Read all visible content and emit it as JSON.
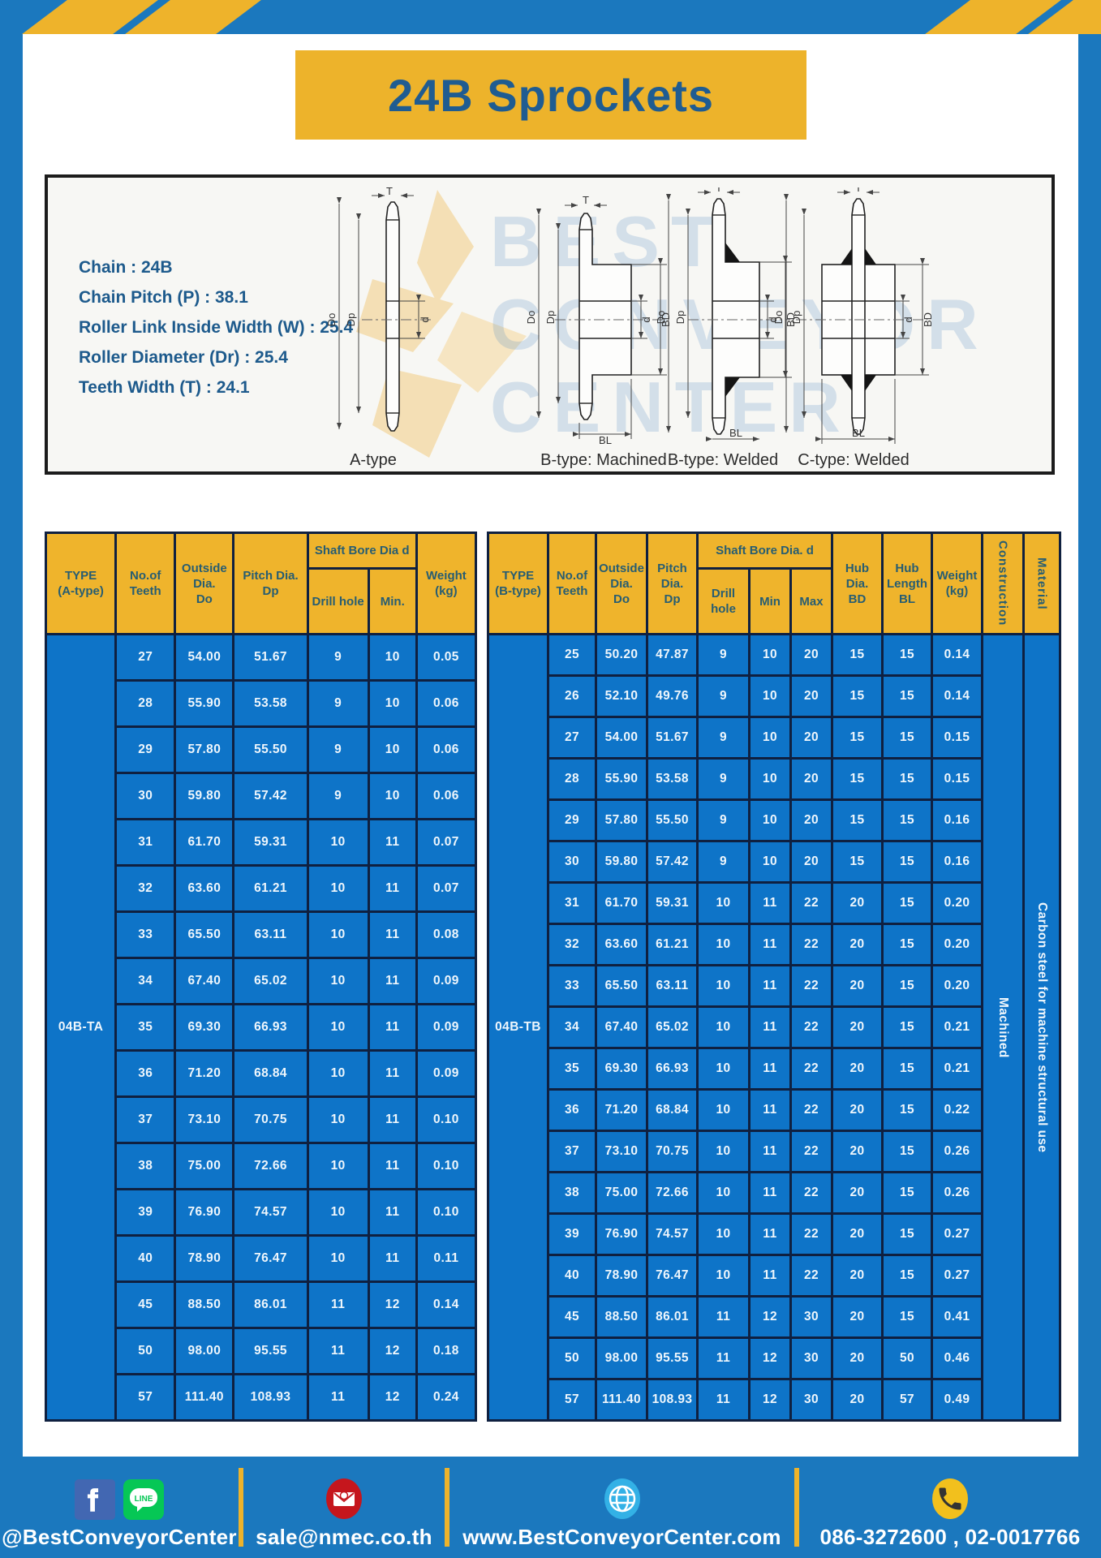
{
  "page": {
    "title": "24B Sprockets"
  },
  "specs": [
    "Chain : 24B",
    "Chain Pitch (P) : 38.1",
    "Roller Link Inside Width (W) : 25.4",
    "Roller Diameter (Dr) : 25.4",
    "Teeth Width (T) : 24.1"
  ],
  "diagram": {
    "watermark": "BEST\nCONVEYOR\nCENTER",
    "dims": {
      "t": "T",
      "do": "Do",
      "dp": "Dp",
      "d": "d",
      "bd": "BD",
      "bl": "BL"
    },
    "captions": [
      "A-type",
      "B-type: Machined",
      "B-type: Welded",
      "C-type: Welded"
    ]
  },
  "table_a": {
    "type_label": "04B-TA",
    "headers": {
      "type": "TYPE\n(A-type)",
      "teeth": "No.of\nTeeth",
      "outside": "Outside\nDia.\nDo",
      "pitch": "Pitch Dia.\nDp",
      "shaft_bore": "Shaft Bore Dia d",
      "drill": "Drill hole",
      "min": "Min.",
      "weight": "Weight\n(kg)"
    },
    "rows": [
      [
        "27",
        "54.00",
        "51.67",
        "9",
        "10",
        "0.05"
      ],
      [
        "28",
        "55.90",
        "53.58",
        "9",
        "10",
        "0.06"
      ],
      [
        "29",
        "57.80",
        "55.50",
        "9",
        "10",
        "0.06"
      ],
      [
        "30",
        "59.80",
        "57.42",
        "9",
        "10",
        "0.06"
      ],
      [
        "31",
        "61.70",
        "59.31",
        "10",
        "11",
        "0.07"
      ],
      [
        "32",
        "63.60",
        "61.21",
        "10",
        "11",
        "0.07"
      ],
      [
        "33",
        "65.50",
        "63.11",
        "10",
        "11",
        "0.08"
      ],
      [
        "34",
        "67.40",
        "65.02",
        "10",
        "11",
        "0.09"
      ],
      [
        "35",
        "69.30",
        "66.93",
        "10",
        "11",
        "0.09"
      ],
      [
        "36",
        "71.20",
        "68.84",
        "10",
        "11",
        "0.09"
      ],
      [
        "37",
        "73.10",
        "70.75",
        "10",
        "11",
        "0.10"
      ],
      [
        "38",
        "75.00",
        "72.66",
        "10",
        "11",
        "0.10"
      ],
      [
        "39",
        "76.90",
        "74.57",
        "10",
        "11",
        "0.10"
      ],
      [
        "40",
        "78.90",
        "76.47",
        "10",
        "11",
        "0.11"
      ],
      [
        "45",
        "88.50",
        "86.01",
        "11",
        "12",
        "0.14"
      ],
      [
        "50",
        "98.00",
        "95.55",
        "11",
        "12",
        "0.18"
      ],
      [
        "57",
        "111.40",
        "108.93",
        "11",
        "12",
        "0.24"
      ]
    ]
  },
  "table_b": {
    "type_label": "04B-TB",
    "construction": "Machined",
    "material": "Carbon steel for machine structural use",
    "headers": {
      "type": "TYPE\n(B-type)",
      "teeth": "No.of\nTeeth",
      "outside": "Outside\nDia.\nDo",
      "pitch": "Pitch\nDia.\nDp",
      "shaft_bore": "Shaft Bore Dia. d",
      "drill": "Drill hole",
      "min": "Min",
      "max": "Max",
      "hub_dia": "Hub\nDia.\nBD",
      "hub_len": "Hub\nLength\nBL",
      "weight": "Weight\n(kg)",
      "construction": "Construction",
      "material": "Material"
    },
    "rows": [
      [
        "25",
        "50.20",
        "47.87",
        "9",
        "10",
        "20",
        "15",
        "15",
        "0.14"
      ],
      [
        "26",
        "52.10",
        "49.76",
        "9",
        "10",
        "20",
        "15",
        "15",
        "0.14"
      ],
      [
        "27",
        "54.00",
        "51.67",
        "9",
        "10",
        "20",
        "15",
        "15",
        "0.15"
      ],
      [
        "28",
        "55.90",
        "53.58",
        "9",
        "10",
        "20",
        "15",
        "15",
        "0.15"
      ],
      [
        "29",
        "57.80",
        "55.50",
        "9",
        "10",
        "20",
        "15",
        "15",
        "0.16"
      ],
      [
        "30",
        "59.80",
        "57.42",
        "9",
        "10",
        "20",
        "15",
        "15",
        "0.16"
      ],
      [
        "31",
        "61.70",
        "59.31",
        "10",
        "11",
        "22",
        "20",
        "15",
        "0.20"
      ],
      [
        "32",
        "63.60",
        "61.21",
        "10",
        "11",
        "22",
        "20",
        "15",
        "0.20"
      ],
      [
        "33",
        "65.50",
        "63.11",
        "10",
        "11",
        "22",
        "20",
        "15",
        "0.20"
      ],
      [
        "34",
        "67.40",
        "65.02",
        "10",
        "11",
        "22",
        "20",
        "15",
        "0.21"
      ],
      [
        "35",
        "69.30",
        "66.93",
        "10",
        "11",
        "22",
        "20",
        "15",
        "0.21"
      ],
      [
        "36",
        "71.20",
        "68.84",
        "10",
        "11",
        "22",
        "20",
        "15",
        "0.22"
      ],
      [
        "37",
        "73.10",
        "70.75",
        "10",
        "11",
        "22",
        "20",
        "15",
        "0.26"
      ],
      [
        "38",
        "75.00",
        "72.66",
        "10",
        "11",
        "22",
        "20",
        "15",
        "0.26"
      ],
      [
        "39",
        "76.90",
        "74.57",
        "10",
        "11",
        "22",
        "20",
        "15",
        "0.27"
      ],
      [
        "40",
        "78.90",
        "76.47",
        "10",
        "11",
        "22",
        "20",
        "15",
        "0.27"
      ],
      [
        "45",
        "88.50",
        "86.01",
        "11",
        "12",
        "30",
        "20",
        "15",
        "0.41"
      ],
      [
        "50",
        "98.00",
        "95.55",
        "11",
        "12",
        "30",
        "20",
        "50",
        "0.46"
      ],
      [
        "57",
        "111.40",
        "108.93",
        "11",
        "12",
        "30",
        "20",
        "57",
        "0.49"
      ]
    ]
  },
  "footer": {
    "items": [
      {
        "icon": "facebook-line",
        "label": "@BestConveyorCenter"
      },
      {
        "icon": "mail",
        "label": "sale@nmec.co.th"
      },
      {
        "icon": "globe",
        "label": "www.BestConveyorCenter.com"
      },
      {
        "icon": "phone",
        "label": "086-3272600 , 02-0017766"
      }
    ]
  },
  "colors": {
    "frame_blue": "#1b78be",
    "accent_yellow": "#eeb32b",
    "table_body_blue": "#0e74c8",
    "table_border_navy": "#0f2040",
    "header_text": "#275d72",
    "title_text": "#1f5c91",
    "facebook_blue": "#4267b2",
    "line_green": "#06c755",
    "mail_red": "#c5161d",
    "globe_blue": "#33b1e6",
    "phone_yellow": "#f2c01d"
  }
}
